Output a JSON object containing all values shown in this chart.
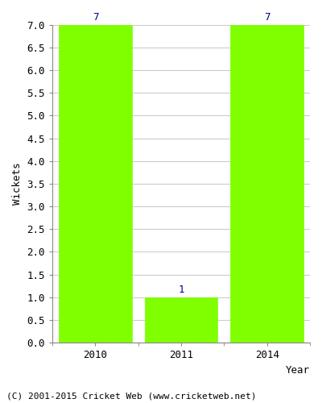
{
  "title": "",
  "categories": [
    "2010",
    "2011",
    "2014"
  ],
  "values": [
    7,
    1,
    7
  ],
  "bar_color": "#7fff00",
  "bar_edge_color": "#7fff00",
  "xlabel": "Year",
  "ylabel": "Wickets",
  "ylim": [
    0,
    7.0
  ],
  "yticks": [
    0.0,
    0.5,
    1.0,
    1.5,
    2.0,
    2.5,
    3.0,
    3.5,
    4.0,
    4.5,
    5.0,
    5.5,
    6.0,
    6.5,
    7.0
  ],
  "annotation_color": "#00008b",
  "grid_color": "#cccccc",
  "background_color": "#ffffff",
  "footnote": "(C) 2001-2015 Cricket Web (www.cricketweb.net)",
  "bar_width": 0.85,
  "label_fontsize": 9,
  "tick_fontsize": 9,
  "annotation_fontsize": 9,
  "footnote_fontsize": 8
}
